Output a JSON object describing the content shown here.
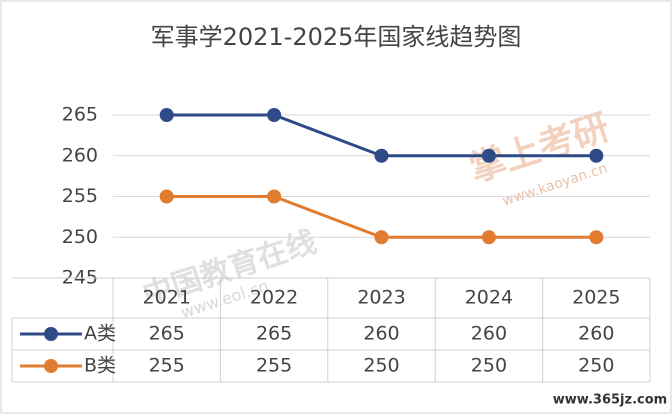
{
  "chart_data": {
    "type": "line",
    "title": "军事学2021-2025年国家线趋势图",
    "categories": [
      "2021",
      "2022",
      "2023",
      "2024",
      "2025"
    ],
    "series": [
      {
        "name": "A类",
        "color": "#2e4a87",
        "values": [
          265,
          265,
          260,
          260,
          260
        ]
      },
      {
        "name": "B类",
        "color": "#e07b30",
        "values": [
          255,
          255,
          250,
          250,
          250
        ]
      }
    ],
    "ylim": [
      245,
      265
    ],
    "yticks": [
      245,
      250,
      255,
      260,
      265
    ],
    "grid": true
  },
  "watermarks": [
    "中国教育在线",
    "www.eol.cn",
    "掌上考研",
    "www.kaoyan.cn",
    "www.365jz.com"
  ]
}
